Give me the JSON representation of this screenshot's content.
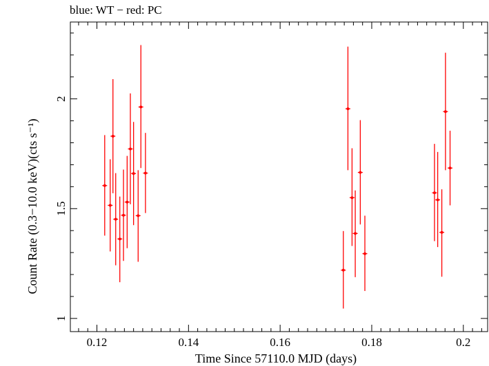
{
  "chart_data": {
    "type": "scatter",
    "title": "blue: WT − red: PC",
    "xlabel": "Time Since 57110.0 MJD (days)",
    "ylabel": "Count Rate (0.3−10.0 keV)(cts s⁻¹)",
    "xlim": [
      0.1142,
      0.2053
    ],
    "ylim": [
      0.94,
      2.35
    ],
    "xticks": [
      0.12,
      0.14,
      0.16,
      0.18,
      0.2
    ],
    "xtick_labels": [
      "0.12",
      "0.14",
      "0.16",
      "0.18",
      "0.2"
    ],
    "yticks": [
      1,
      1.5,
      2
    ],
    "ytick_labels": [
      "1",
      "1.5",
      "2"
    ],
    "grid": false,
    "series": [
      {
        "color": "#ff0000",
        "points": [
          {
            "x": 0.1217,
            "y": 1.605,
            "ylo": 1.377,
            "yhi": 1.835
          },
          {
            "x": 0.1229,
            "y": 1.515,
            "ylo": 1.305,
            "yhi": 1.725
          },
          {
            "x": 0.1235,
            "y": 1.83,
            "ylo": 1.57,
            "yhi": 2.09
          },
          {
            "x": 0.1241,
            "y": 1.452,
            "ylo": 1.242,
            "yhi": 1.662
          },
          {
            "x": 0.125,
            "y": 1.362,
            "ylo": 1.165,
            "yhi": 1.555
          },
          {
            "x": 0.1258,
            "y": 1.47,
            "ylo": 1.262,
            "yhi": 1.678
          },
          {
            "x": 0.1266,
            "y": 1.53,
            "ylo": 1.32,
            "yhi": 1.74
          },
          {
            "x": 0.1273,
            "y": 1.772,
            "ylo": 1.52,
            "yhi": 2.025
          },
          {
            "x": 0.128,
            "y": 1.66,
            "ylo": 1.425,
            "yhi": 1.895
          },
          {
            "x": 0.129,
            "y": 1.468,
            "ylo": 1.258,
            "yhi": 1.675
          },
          {
            "x": 0.1296,
            "y": 1.963,
            "ylo": 1.685,
            "yhi": 2.245
          },
          {
            "x": 0.1306,
            "y": 1.662,
            "ylo": 1.48,
            "yhi": 1.845
          },
          {
            "x": 0.1738,
            "y": 1.22,
            "ylo": 1.045,
            "yhi": 1.398
          },
          {
            "x": 0.1748,
            "y": 1.955,
            "ylo": 1.675,
            "yhi": 2.238
          },
          {
            "x": 0.1757,
            "y": 1.55,
            "ylo": 1.33,
            "yhi": 1.775
          },
          {
            "x": 0.1764,
            "y": 1.387,
            "ylo": 1.188,
            "yhi": 1.583
          },
          {
            "x": 0.1775,
            "y": 1.665,
            "ylo": 1.428,
            "yhi": 1.903
          },
          {
            "x": 0.1785,
            "y": 1.295,
            "ylo": 1.125,
            "yhi": 1.468
          },
          {
            "x": 0.1937,
            "y": 1.572,
            "ylo": 1.352,
            "yhi": 1.795
          },
          {
            "x": 0.1944,
            "y": 1.54,
            "ylo": 1.325,
            "yhi": 1.758
          },
          {
            "x": 0.1953,
            "y": 1.392,
            "ylo": 1.19,
            "yhi": 1.588
          },
          {
            "x": 0.1961,
            "y": 1.942,
            "ylo": 1.675,
            "yhi": 2.21
          },
          {
            "x": 0.1971,
            "y": 1.685,
            "ylo": 1.515,
            "yhi": 1.855
          }
        ]
      }
    ]
  }
}
